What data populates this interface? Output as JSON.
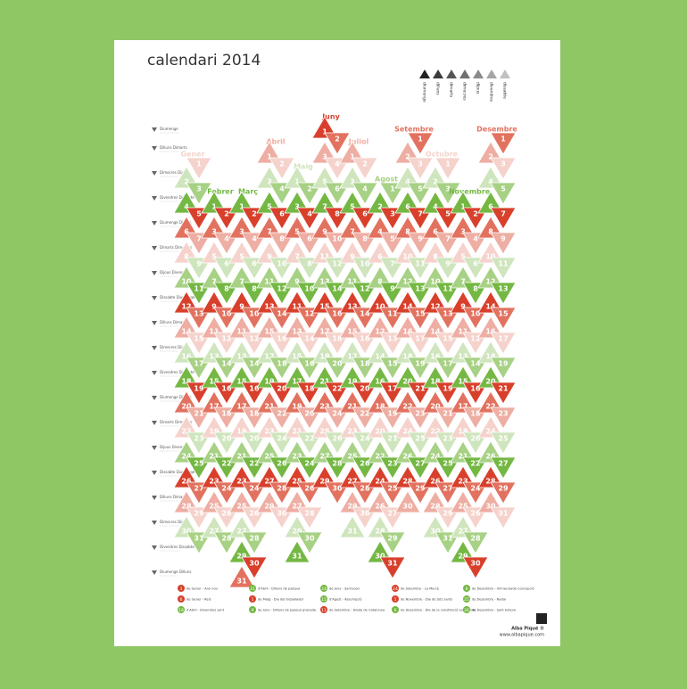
{
  "header": {
    "title": "calendari 2014"
  },
  "weekdays": [
    {
      "name": "diumenge",
      "color": "#d8402c",
      "shade": "#222222"
    },
    {
      "name": "dilluns",
      "color": "#e2725f",
      "shade": "#3a3a3a"
    },
    {
      "name": "dimarts",
      "color": "#eeaea3",
      "shade": "#555555"
    },
    {
      "name": "dimecres",
      "color": "#f5d3cc",
      "shade": "#707070"
    },
    {
      "name": "dijous",
      "color": "#cfe5bd",
      "shade": "#8a8a8a"
    },
    {
      "name": "divendres",
      "color": "#a7d184",
      "shade": "#a5a5a5"
    },
    {
      "name": "dissabte",
      "color": "#74b843",
      "shade": "#c0c0c0"
    }
  ],
  "row_labels": [
    "Diumenge",
    "Dilluns Dimarts",
    "Dimecres Dijous",
    "Divendres Dissabte",
    "Diumenge Dilluns",
    "Dimarts Dimecres",
    "Dijous Divendres",
    "Dissabte Diumenge",
    "Dilluns Dimarts",
    "Dimecres Dijous",
    "Divendres Dissabte",
    "Diumenge Dilluns",
    "Dimarts Dimecres",
    "Dijous Divendres",
    "Dissabte Diumenge",
    "Dilluns Dimarts",
    "Dimecres Dijous",
    "Divendres Dissabte",
    "Diumenge Dilluns"
  ],
  "months": [
    {
      "name": "Gener",
      "first_weekday": 3,
      "days": [
        1,
        2,
        3,
        4,
        5,
        6,
        7,
        8,
        9,
        10,
        11,
        12,
        13,
        14,
        15,
        16,
        17,
        18,
        19,
        20,
        21,
        22,
        23,
        24,
        25,
        26,
        27,
        28,
        29,
        30,
        31
      ]
    },
    {
      "name": "Febrer",
      "first_weekday": 6,
      "days": [
        1,
        2,
        3,
        4,
        5,
        6,
        7,
        8,
        9,
        10,
        11,
        12,
        13,
        14,
        15,
        16,
        17,
        18,
        19,
        20,
        21,
        22,
        23,
        24,
        25,
        26,
        27,
        28
      ]
    },
    {
      "name": "Març",
      "first_weekday": 6,
      "days": [
        1,
        2,
        3,
        4,
        5,
        6,
        7,
        8,
        9,
        10,
        11,
        12,
        13,
        14,
        15,
        16,
        17,
        18,
        19,
        20,
        21,
        22,
        23,
        24,
        25,
        26,
        27,
        28,
        29,
        30,
        31
      ]
    },
    {
      "name": "Abril",
      "first_weekday": 2,
      "days": [
        1,
        2,
        3,
        4,
        5,
        6,
        7,
        8,
        9,
        10,
        11,
        12,
        13,
        14,
        15,
        16,
        17,
        18,
        19,
        20,
        21,
        22,
        23,
        24,
        25,
        26,
        27,
        28,
        29,
        30
      ]
    },
    {
      "name": "Maig",
      "first_weekday": 4,
      "days": [
        1,
        2,
        3,
        4,
        5,
        6,
        7,
        8,
        9,
        10,
        11,
        12,
        13,
        14,
        15,
        16,
        17,
        18,
        19,
        20,
        21,
        22,
        23,
        24,
        25,
        26,
        27,
        28,
        29,
        30,
        31
      ]
    },
    {
      "name": "Juny",
      "first_weekday": 0,
      "days": [
        1,
        2,
        3,
        4,
        5,
        6,
        7,
        8,
        9,
        10,
        11,
        12,
        13,
        14,
        15,
        16,
        17,
        18,
        19,
        20,
        21,
        22,
        23,
        24,
        25,
        26,
        27,
        28,
        29,
        30
      ]
    },
    {
      "name": "Juliol",
      "first_weekday": 2,
      "days": [
        1,
        2,
        3,
        4,
        5,
        6,
        7,
        8,
        9,
        10,
        11,
        12,
        13,
        14,
        15,
        16,
        17,
        18,
        19,
        20,
        21,
        22,
        23,
        24,
        25,
        26,
        27,
        28,
        29,
        30,
        31
      ]
    },
    {
      "name": "Agost",
      "first_weekday": 5,
      "days": [
        1,
        2,
        3,
        4,
        5,
        6,
        7,
        8,
        9,
        10,
        11,
        12,
        13,
        14,
        15,
        16,
        17,
        18,
        19,
        20,
        21,
        22,
        23,
        24,
        25,
        26,
        27,
        28,
        29,
        30,
        31
      ]
    },
    {
      "name": "Setembre",
      "first_weekday": 1,
      "days": [
        1,
        2,
        3,
        4,
        5,
        6,
        7,
        8,
        9,
        10,
        11,
        12,
        13,
        14,
        15,
        16,
        17,
        18,
        19,
        20,
        21,
        22,
        23,
        24,
        25,
        26,
        27,
        28,
        29,
        30
      ]
    },
    {
      "name": "Octubre",
      "first_weekday": 3,
      "days": [
        1,
        2,
        3,
        4,
        5,
        6,
        7,
        8,
        9,
        10,
        11,
        12,
        13,
        14,
        15,
        16,
        17,
        18,
        19,
        20,
        21,
        22,
        23,
        24,
        25,
        26,
        27,
        28,
        29,
        30,
        31
      ]
    },
    {
      "name": "Novembre",
      "first_weekday": 6,
      "days": [
        1,
        2,
        3,
        4,
        5,
        6,
        7,
        8,
        9,
        10,
        11,
        12,
        13,
        14,
        15,
        16,
        17,
        18,
        19,
        20,
        21,
        22,
        23,
        24,
        25,
        26,
        27,
        28,
        29,
        30
      ]
    },
    {
      "name": "Desembre",
      "first_weekday": 1,
      "days": [
        1,
        2,
        3,
        4,
        5,
        6,
        7,
        8,
        9,
        10,
        11,
        12,
        13,
        14,
        15,
        16,
        17,
        18,
        19,
        20,
        21,
        22,
        23,
        24,
        25,
        26,
        27,
        28,
        29,
        30,
        31
      ]
    }
  ],
  "holidays": [
    {
      "day": "1",
      "text": "de Gener - Any nou",
      "color": "#d8402c"
    },
    {
      "day": "6",
      "text": "de Gener - Reis",
      "color": "#d8402c"
    },
    {
      "day": "18",
      "text": "d'Abril - Divendres sant",
      "color": "#74b843"
    },
    {
      "day": "21",
      "text": "d'Abril - Dilluns de pasqua",
      "color": "#74b843"
    },
    {
      "day": "1",
      "text": "de Maig - Dia del treballador",
      "color": "#d8402c"
    },
    {
      "day": "9",
      "text": "de Juny - Dilluns de pasqua granada",
      "color": "#74b843"
    },
    {
      "day": "24",
      "text": "de Juny - Sant Joan",
      "color": "#74b843"
    },
    {
      "day": "15",
      "text": "d'Agost - Assumpció",
      "color": "#74b843"
    },
    {
      "day": "11",
      "text": "de Setembre - Diada de Catalunya",
      "color": "#d8402c"
    },
    {
      "day": "24",
      "text": "de Setembre - La Mercè",
      "color": "#d8402c"
    },
    {
      "day": "1",
      "text": "de Novembre - Dia de tots sants",
      "color": "#d8402c"
    },
    {
      "day": "6",
      "text": "de Desembre - Dia de la constitució espanyola",
      "color": "#74b843"
    },
    {
      "day": "8",
      "text": "de Desembre - Immaculada Concepció",
      "color": "#74b843"
    },
    {
      "day": "25",
      "text": "de Desembre - Nadal",
      "color": "#74b843"
    },
    {
      "day": "26",
      "text": "de Desembre - Sant Esteve",
      "color": "#74b843"
    }
  ],
  "footer": {
    "author": "Alba Piqué ®",
    "url": "www.albapique.com"
  }
}
